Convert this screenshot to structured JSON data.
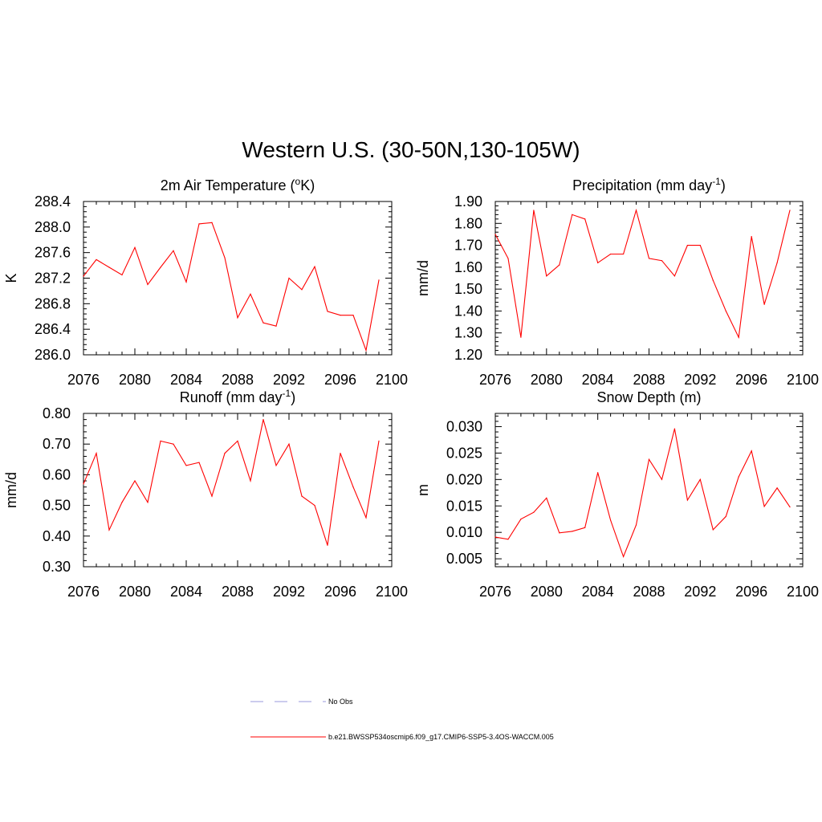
{
  "figure": {
    "title": "Western U.S. (30-50N,130-105W)"
  },
  "legend": {
    "entries": [
      {
        "label": "No Obs",
        "color": "#9999dd",
        "style": "dashed"
      },
      {
        "label": "b.e21.BWSSP534oscmip6.f09_g17.CMIP6-SSP5-3.4OS-WACCM.005",
        "color": "#ff0000",
        "style": "solid"
      }
    ]
  },
  "colors": {
    "series": "#ff0000",
    "axis": "#000000"
  },
  "chart_data": [
    {
      "type": "line",
      "title": "2m Air Temperature (",
      "title_sup": "o",
      "title_tail": "K)",
      "xlabel": "",
      "ylabel": "K",
      "xlim": [
        2076,
        2100
      ],
      "ylim": [
        286.0,
        288.4
      ],
      "x_ticks": [
        2076,
        2080,
        2084,
        2088,
        2092,
        2096,
        2100
      ],
      "y_ticks": [
        "286.0",
        "286.4",
        "286.8",
        "287.2",
        "287.6",
        "288.0",
        "288.4"
      ],
      "grid": false,
      "series": [
        {
          "x": [
            2076,
            2077,
            2078,
            2079,
            2080,
            2081,
            2082,
            2083,
            2084,
            2085,
            2086,
            2087,
            2088,
            2089,
            2090,
            2091,
            2092,
            2093,
            2094,
            2095,
            2096,
            2097,
            2098,
            2099
          ],
          "values": [
            287.23,
            287.49,
            287.37,
            287.25,
            287.68,
            287.1,
            287.37,
            287.63,
            287.14,
            288.05,
            288.07,
            287.52,
            286.58,
            286.95,
            286.5,
            286.45,
            287.2,
            287.02,
            287.38,
            286.68,
            286.62,
            286.62,
            286.07,
            287.17
          ]
        }
      ]
    },
    {
      "type": "line",
      "title": "Precipitation (mm day",
      "title_sup": "-1",
      "title_tail": ")",
      "xlabel": "",
      "ylabel": "mm/d",
      "xlim": [
        2076,
        2100
      ],
      "ylim": [
        1.2,
        1.9
      ],
      "x_ticks": [
        2076,
        2080,
        2084,
        2088,
        2092,
        2096,
        2100
      ],
      "y_ticks": [
        "1.20",
        "1.30",
        "1.40",
        "1.50",
        "1.60",
        "1.70",
        "1.80",
        "1.90"
      ],
      "grid": false,
      "series": [
        {
          "x": [
            2076,
            2077,
            2078,
            2079,
            2080,
            2081,
            2082,
            2083,
            2084,
            2085,
            2086,
            2087,
            2088,
            2089,
            2090,
            2091,
            2092,
            2093,
            2094,
            2095,
            2096,
            2097,
            2098,
            2099
          ],
          "values": [
            1.75,
            1.64,
            1.28,
            1.86,
            1.56,
            1.61,
            1.84,
            1.82,
            1.62,
            1.66,
            1.66,
            1.86,
            1.64,
            1.63,
            1.56,
            1.7,
            1.7,
            1.54,
            1.4,
            1.28,
            1.74,
            1.43,
            1.62,
            1.86
          ]
        }
      ]
    },
    {
      "type": "line",
      "title": "Runoff (mm day",
      "title_sup": "-1",
      "title_tail": ")",
      "xlabel": "",
      "ylabel": "mm/d",
      "xlim": [
        2076,
        2100
      ],
      "ylim": [
        0.3,
        0.8
      ],
      "x_ticks": [
        2076,
        2080,
        2084,
        2088,
        2092,
        2096,
        2100
      ],
      "y_ticks": [
        "0.30",
        "0.40",
        "0.50",
        "0.60",
        "0.70",
        "0.80"
      ],
      "grid": false,
      "series": [
        {
          "x": [
            2076,
            2077,
            2078,
            2079,
            2080,
            2081,
            2082,
            2083,
            2084,
            2085,
            2086,
            2087,
            2088,
            2089,
            2090,
            2091,
            2092,
            2093,
            2094,
            2095,
            2096,
            2097,
            2098,
            2099
          ],
          "values": [
            0.57,
            0.67,
            0.42,
            0.51,
            0.58,
            0.51,
            0.71,
            0.7,
            0.63,
            0.64,
            0.53,
            0.67,
            0.71,
            0.58,
            0.78,
            0.63,
            0.7,
            0.53,
            0.5,
            0.37,
            0.67,
            0.56,
            0.46,
            0.71
          ]
        }
      ]
    },
    {
      "type": "line",
      "title": "Snow Depth (m)",
      "title_sup": "",
      "title_tail": "",
      "xlabel": "",
      "ylabel": "m",
      "xlim": [
        2076,
        2100
      ],
      "ylim": [
        0.0035,
        0.0325
      ],
      "x_ticks": [
        2076,
        2080,
        2084,
        2088,
        2092,
        2096,
        2100
      ],
      "y_ticks": [
        "0.005",
        "0.010",
        "0.015",
        "0.020",
        "0.025",
        "0.030"
      ],
      "grid": false,
      "series": [
        {
          "x": [
            2076,
            2077,
            2078,
            2079,
            2080,
            2081,
            2082,
            2083,
            2084,
            2085,
            2086,
            2087,
            2088,
            2089,
            2090,
            2091,
            2092,
            2093,
            2094,
            2095,
            2096,
            2097,
            2098,
            2099
          ],
          "values": [
            0.0091,
            0.0087,
            0.0125,
            0.0138,
            0.0165,
            0.0099,
            0.0102,
            0.0109,
            0.0213,
            0.0123,
            0.0054,
            0.0114,
            0.0238,
            0.02,
            0.0296,
            0.0161,
            0.02,
            0.0105,
            0.013,
            0.0205,
            0.0254,
            0.0149,
            0.0184,
            0.0148
          ]
        }
      ]
    }
  ]
}
